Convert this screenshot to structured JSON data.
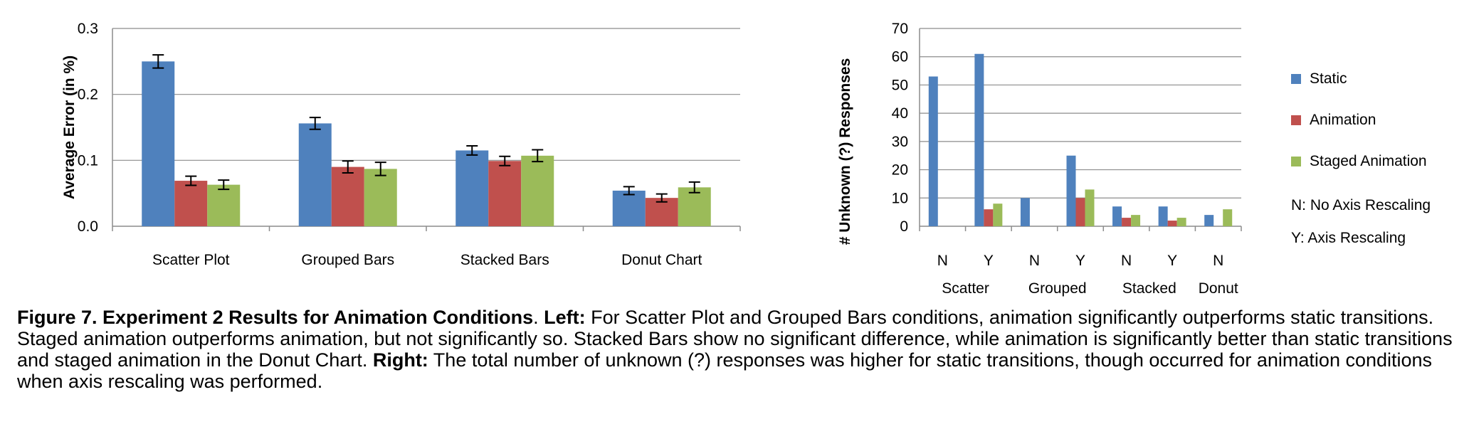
{
  "colors": {
    "static": "#4F81BD",
    "animation": "#C0504D",
    "staged": "#9BBB59",
    "axis": "#8C8C8C",
    "grid": "#8C8C8C"
  },
  "chart_data": [
    {
      "type": "bar",
      "ylabel": "Average Error  (in %)",
      "xlabel": "",
      "ylim": [
        0,
        0.3
      ],
      "yticks": [
        "0.0",
        "0.1",
        "0.2",
        "0.3"
      ],
      "grid": true,
      "categories": [
        "Scatter Plot",
        "Grouped Bars",
        "Stacked Bars",
        "Donut Chart"
      ],
      "series": [
        {
          "name": "Static",
          "values": [
            0.25,
            0.156,
            0.115,
            0.054
          ],
          "errors": [
            0.01,
            0.009,
            0.007,
            0.006
          ]
        },
        {
          "name": "Animation",
          "values": [
            0.069,
            0.09,
            0.099,
            0.043
          ],
          "errors": [
            0.007,
            0.009,
            0.007,
            0.006
          ]
        },
        {
          "name": "Staged Animation",
          "values": [
            0.063,
            0.087,
            0.107,
            0.059
          ],
          "errors": [
            0.007,
            0.01,
            0.009,
            0.008
          ]
        }
      ]
    },
    {
      "type": "bar",
      "ylabel": "# Unknown (?) Responses",
      "xlabel": "",
      "ylim": [
        0,
        70
      ],
      "yticks": [
        "0",
        "10",
        "20",
        "30",
        "40",
        "50",
        "60",
        "70"
      ],
      "grid": true,
      "categories": [
        "N",
        "Y",
        "N",
        "Y",
        "N",
        "Y",
        "N"
      ],
      "groups": [
        "Scatter",
        "Grouped",
        "Stacked",
        "Donut"
      ],
      "series": [
        {
          "name": "Static",
          "values": [
            53,
            61,
            10,
            25,
            7,
            7,
            4
          ]
        },
        {
          "name": "Animation",
          "values": [
            0,
            6,
            0,
            10,
            3,
            2,
            0
          ]
        },
        {
          "name": "Staged Animation",
          "values": [
            0,
            8,
            0,
            13,
            4,
            3,
            6
          ]
        }
      ]
    }
  ],
  "legend": {
    "items": [
      "Static",
      "Animation",
      "Staged Animation"
    ],
    "notes": [
      "N: No Axis Rescaling",
      "Y: Axis Rescaling"
    ]
  },
  "caption": {
    "fig_label": "Figure 7. Experiment 2 Results for Animation Conditions",
    "period": ". ",
    "left_label": "Left:",
    "left_text": " For Scatter Plot and Grouped Bars conditions, animation significantly outperforms static transitions. Staged animation outperforms animation, but not significantly so. Stacked Bars show no significant difference, while animation is significantly better than static transitions and staged animation in the Donut Chart. ",
    "right_label": "Right:",
    "right_text": " The total number of unknown (?) responses was higher for static transitions, though occurred for animation conditions when axis rescaling was performed."
  }
}
